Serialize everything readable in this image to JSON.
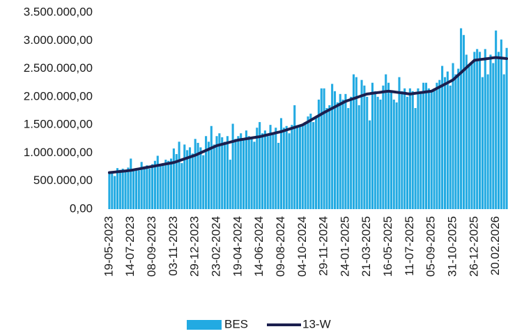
{
  "chart_data": {
    "type": "bar",
    "categories": [
      "19-05-2023",
      null,
      null,
      null,
      null,
      null,
      null,
      null,
      "14-07-2023",
      null,
      null,
      null,
      null,
      null,
      null,
      null,
      "08-09-2023",
      null,
      null,
      null,
      null,
      null,
      null,
      null,
      "03-11-2023",
      null,
      null,
      null,
      null,
      null,
      null,
      null,
      "29-12-2023",
      null,
      null,
      null,
      null,
      null,
      null,
      null,
      "23-02-2024",
      null,
      null,
      null,
      null,
      null,
      null,
      null,
      "19-04-2024",
      null,
      null,
      null,
      null,
      null,
      null,
      null,
      "14-06-2024",
      null,
      null,
      null,
      null,
      null,
      null,
      null,
      "09-08-2024",
      null,
      null,
      null,
      null,
      null,
      null,
      null,
      "04-10-2024",
      null,
      null,
      null,
      null,
      null,
      null,
      null,
      "29-11-2024",
      null,
      null,
      null,
      null,
      null,
      null,
      null,
      "24-01-2025",
      null,
      null,
      null,
      null,
      null,
      null,
      null,
      "21-03-2025",
      null,
      null,
      null,
      null,
      null,
      null,
      null,
      "16-05-2025",
      null,
      null,
      null,
      null,
      null,
      null,
      null,
      "11-07-2025",
      null,
      null,
      null,
      null,
      null,
      null,
      null,
      "05-09-2025",
      null,
      null,
      null,
      null,
      null,
      null,
      null,
      "31-10-2025",
      null,
      null,
      null,
      null,
      null,
      null,
      null,
      "26-12-2025",
      null,
      null,
      null,
      null,
      null,
      null,
      null,
      "20.02.2026",
      null,
      null,
      null,
      null
    ],
    "series": [
      {
        "name": "BES",
        "color": "#22aae2",
        "values": [
          640000,
          650000,
          590000,
          730000,
          700000,
          720000,
          680000,
          740000,
          900000,
          700000,
          720000,
          690000,
          840000,
          760000,
          780000,
          720000,
          800000,
          860000,
          950000,
          780000,
          820000,
          880000,
          860000,
          900000,
          1080000,
          980000,
          1200000,
          820000,
          1150000,
          1050000,
          1100000,
          990000,
          1250000,
          1180000,
          1100000,
          960000,
          1300000,
          1200000,
          1480000,
          1150000,
          1300000,
          1350000,
          1280000,
          1200000,
          1300000,
          880000,
          1520000,
          1250000,
          1300000,
          1350000,
          1250000,
          1400000,
          1300000,
          1280000,
          1200000,
          1450000,
          1550000,
          1350000,
          1400000,
          1300000,
          1500000,
          1350000,
          1450000,
          1180000,
          1620000,
          1450000,
          1480000,
          1350000,
          1500000,
          1850000,
          1450000,
          1480000,
          1500000,
          1550000,
          1650000,
          1700000,
          1550000,
          1650000,
          1950000,
          2150000,
          2150000,
          1800000,
          1850000,
          2230000,
          2100000,
          1900000,
          2050000,
          1950000,
          2050000,
          1800000,
          2000000,
          2400000,
          2350000,
          1850000,
          2300000,
          2200000,
          2000000,
          1580000,
          2250000,
          2100000,
          2000000,
          1950000,
          2200000,
          2400000,
          2250000,
          2100000,
          1950000,
          1900000,
          2350000,
          2100000,
          2150000,
          2000000,
          2150000,
          2100000,
          1800000,
          2150000,
          2100000,
          2250000,
          2250000,
          2150000,
          2100000,
          2150000,
          2250000,
          2300000,
          2550000,
          2350000,
          2450000,
          2200000,
          2600000,
          2400000,
          2500000,
          3220000,
          3100000,
          2750000,
          2550000,
          2600000,
          2800000,
          2850000,
          2800000,
          2350000,
          2850000,
          2400000,
          2750000,
          2600000,
          3180000,
          2800000,
          3020000,
          2400000,
          2870000
        ]
      },
      {
        "name": "13-W",
        "color": "#1b1f4e",
        "values": [
          650000,
          655000,
          660000,
          665000,
          670000,
          675000,
          680000,
          685000,
          690000,
          699000,
          708000,
          716000,
          725000,
          734000,
          743000,
          751000,
          760000,
          769000,
          778000,
          786000,
          795000,
          804000,
          813000,
          821000,
          830000,
          846000,
          863000,
          879000,
          895000,
          911000,
          928000,
          944000,
          960000,
          981000,
          1003000,
          1024000,
          1045000,
          1066000,
          1088000,
          1109000,
          1130000,
          1143000,
          1155000,
          1168000,
          1180000,
          1193000,
          1205000,
          1218000,
          1230000,
          1238000,
          1245000,
          1253000,
          1260000,
          1268000,
          1275000,
          1283000,
          1290000,
          1301000,
          1313000,
          1324000,
          1335000,
          1346000,
          1358000,
          1369000,
          1380000,
          1395000,
          1410000,
          1425000,
          1440000,
          1455000,
          1470000,
          1485000,
          1500000,
          1528000,
          1555000,
          1583000,
          1610000,
          1638000,
          1665000,
          1693000,
          1720000,
          1745000,
          1770000,
          1795000,
          1820000,
          1845000,
          1870000,
          1895000,
          1920000,
          1936000,
          1953000,
          1969000,
          1985000,
          2001000,
          2018000,
          2034000,
          2050000,
          2056000,
          2063000,
          2069000,
          2075000,
          2081000,
          2088000,
          2094000,
          2100000,
          2094000,
          2088000,
          2081000,
          2075000,
          2069000,
          2063000,
          2056000,
          2050000,
          2056000,
          2063000,
          2069000,
          2075000,
          2081000,
          2088000,
          2094000,
          2100000,
          2125000,
          2150000,
          2175000,
          2200000,
          2225000,
          2250000,
          2275000,
          2300000,
          2344000,
          2388000,
          2431000,
          2475000,
          2519000,
          2563000,
          2606000,
          2650000,
          2656000,
          2663000,
          2669000,
          2675000,
          2681000,
          2688000,
          2694000,
          2700000,
          2695000,
          2690000,
          2685000,
          2680000
        ]
      }
    ],
    "ylim": [
      0,
      3500000
    ],
    "yticks": [
      {
        "value": 0,
        "label": "0,00"
      },
      {
        "value": 500000,
        "label": "500.000,00"
      },
      {
        "value": 1000000,
        "label": "1.000.000,00"
      },
      {
        "value": 1500000,
        "label": "1.500.000,00"
      },
      {
        "value": 2000000,
        "label": "2.000.000,00"
      },
      {
        "value": 2500000,
        "label": "2.500.000,00"
      },
      {
        "value": 3000000,
        "label": "3.000.000,00"
      },
      {
        "value": 3500000,
        "label": "3.500.000,00"
      }
    ],
    "grid": false
  }
}
